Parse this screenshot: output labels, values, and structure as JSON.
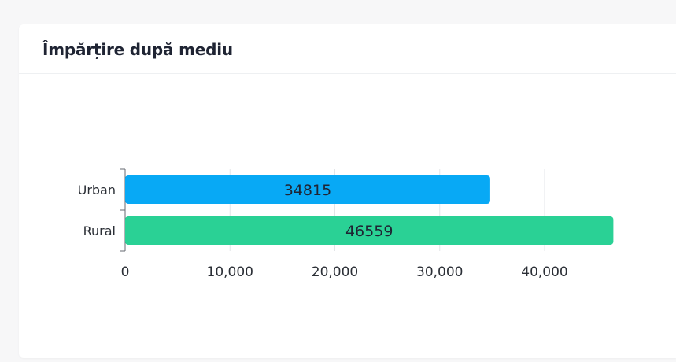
{
  "card": {
    "title": "Împărțire după mediu"
  },
  "chart_data": {
    "type": "bar",
    "orientation": "horizontal",
    "categories": [
      "Urban",
      "Rural"
    ],
    "values": [
      34815,
      46559
    ],
    "colors": [
      "#08a9f5",
      "#2ad195"
    ],
    "xlim": [
      0,
      50000
    ],
    "xticks": [
      0,
      10000,
      20000,
      30000,
      40000
    ],
    "xtick_labels": [
      "0",
      "10,000",
      "20,000",
      "30,000",
      "40,000"
    ],
    "value_labels": [
      "34815",
      "46559"
    ],
    "grid": "vertical",
    "legend": "none"
  }
}
